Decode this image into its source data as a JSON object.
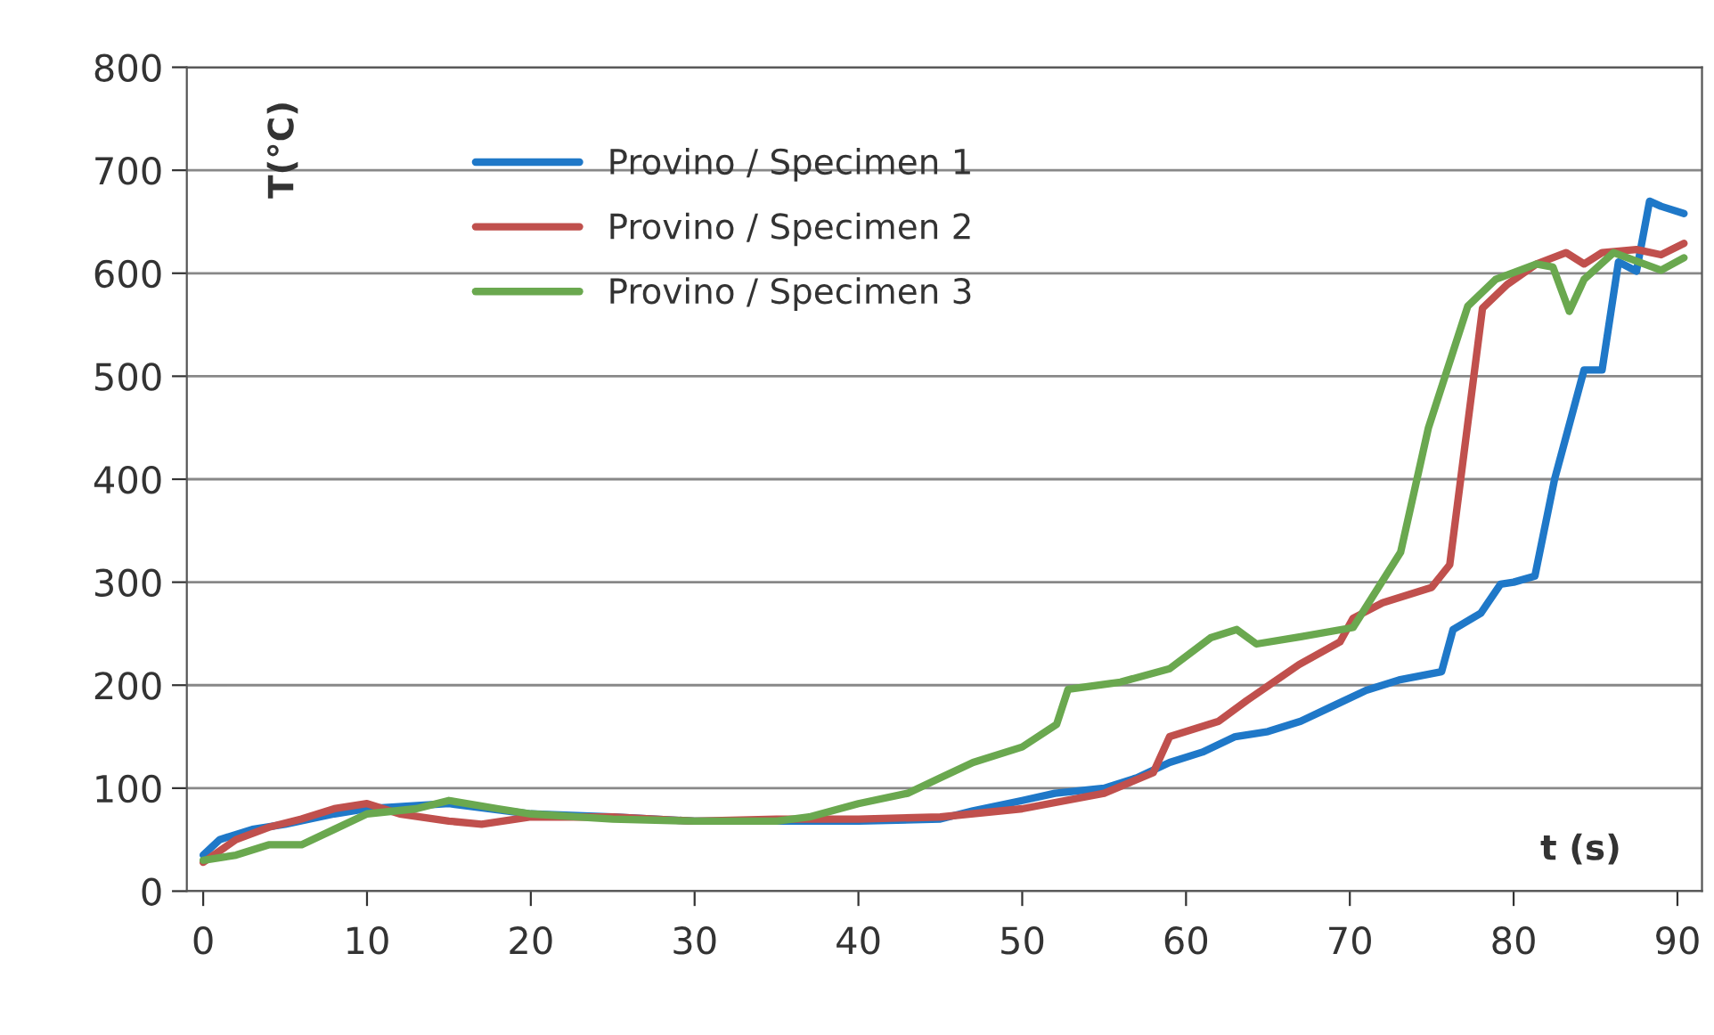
{
  "chart_data": {
    "type": "line",
    "xlabel": "t (s)",
    "ylabel": "T(°C)",
    "xlim": [
      -1,
      91.5
    ],
    "xticks": [
      0,
      10,
      20,
      30,
      40,
      50,
      60,
      70,
      80,
      90
    ],
    "ylim": [
      0,
      800
    ],
    "yticks": [
      0,
      100,
      200,
      300,
      400,
      500,
      600,
      700,
      800
    ],
    "grid": "y",
    "legend": "top left",
    "marker": "none",
    "line_style": "solid",
    "series": [
      {
        "name": "Provino / Specimen 1",
        "color": "#1f78c8",
        "x": [
          0,
          1,
          3,
          5,
          8,
          10,
          15,
          20,
          25,
          30,
          35,
          40,
          45,
          47,
          50,
          52,
          55,
          57,
          59,
          61,
          63,
          65,
          67,
          69,
          71,
          73,
          75.6,
          76.3,
          78,
          79.2,
          80,
          81.3,
          82.5,
          84.3,
          85.4,
          86.4,
          87.5,
          88.3,
          89,
          90.4
        ],
        "values": [
          35,
          50,
          60,
          65,
          75,
          80,
          85,
          75,
          72,
          68,
          68,
          68,
          70,
          78,
          88,
          95,
          100,
          110,
          125,
          135,
          150,
          155,
          165,
          180,
          195,
          205,
          213,
          254,
          270,
          298,
          300,
          306,
          400,
          506,
          506,
          611,
          602,
          670,
          665,
          658
        ]
      },
      {
        "name": "Provino / Specimen 2",
        "color": "#c0504d",
        "x": [
          0,
          2,
          4,
          6,
          8,
          10,
          12,
          15,
          17,
          20,
          25,
          30,
          35,
          40,
          45,
          50,
          55,
          58,
          59,
          62,
          63.7,
          66.9,
          69.4,
          70.2,
          72,
          75,
          76.1,
          78.1,
          79.6,
          81.4,
          83.2,
          84.3,
          85.4,
          87.5,
          89,
          90.4
        ],
        "values": [
          28,
          50,
          62,
          70,
          80,
          85,
          75,
          68,
          65,
          72,
          72,
          68,
          70,
          70,
          72,
          80,
          95,
          115,
          150,
          165,
          185,
          220,
          242,
          265,
          280,
          295,
          317,
          566,
          589,
          609,
          620,
          609,
          620,
          623,
          618,
          629
        ]
      },
      {
        "name": "Provino / Specimen 3",
        "color": "#6aa84f",
        "x": [
          0,
          2,
          4,
          6,
          8,
          10,
          13,
          15,
          18,
          20,
          25,
          30,
          35,
          37,
          40,
          43,
          45,
          47,
          50,
          52.1,
          52.8,
          56,
          59,
          61.5,
          63.1,
          64.3,
          67,
          70.2,
          73.1,
          74.8,
          77.2,
          78.9,
          81.4,
          82.4,
          83.4,
          84.3,
          86.1,
          89,
          90.4
        ],
        "values": [
          30,
          35,
          45,
          45,
          60,
          75,
          80,
          88,
          80,
          75,
          70,
          68,
          68,
          72,
          85,
          95,
          110,
          125,
          140,
          162,
          196,
          203,
          216,
          246,
          254,
          240,
          247,
          256,
          329,
          450,
          568,
          594,
          609,
          606,
          563,
          594,
          620,
          603,
          615
        ]
      }
    ]
  }
}
